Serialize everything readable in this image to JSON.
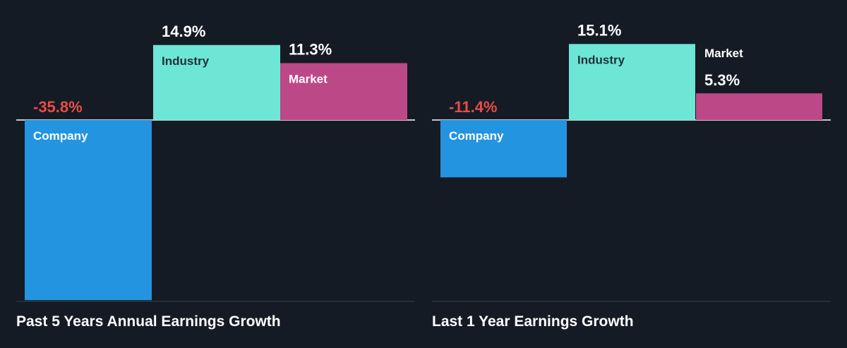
{
  "colors": {
    "background": "#151b24",
    "company": "#2394e0",
    "industry": "#6ee6d5",
    "market": "#bc4887",
    "negative_value": "#e84c47",
    "axis_line": "#ffffff",
    "text": "#ffffff",
    "dark_text": "#1f2f3a"
  },
  "chart_data": [
    {
      "type": "bar",
      "title": "Past 5 Years Annual Earnings Growth",
      "categories": [
        "Company",
        "Industry",
        "Market"
      ],
      "values": [
        -35.8,
        14.9,
        11.3
      ],
      "value_labels": [
        "-35.8%",
        "14.9%",
        "11.3%"
      ],
      "unit": "%",
      "ylim": [
        -35.8,
        14.9
      ],
      "grid": false,
      "legend": "none"
    },
    {
      "type": "bar",
      "title": "Last 1 Year Earnings Growth",
      "categories": [
        "Company",
        "Industry",
        "Market"
      ],
      "values": [
        -11.4,
        15.1,
        5.3
      ],
      "value_labels": [
        "-11.4%",
        "15.1%",
        "5.3%"
      ],
      "unit": "%",
      "ylim": [
        -35.8,
        15.1
      ],
      "grid": false,
      "legend": "none"
    }
  ]
}
